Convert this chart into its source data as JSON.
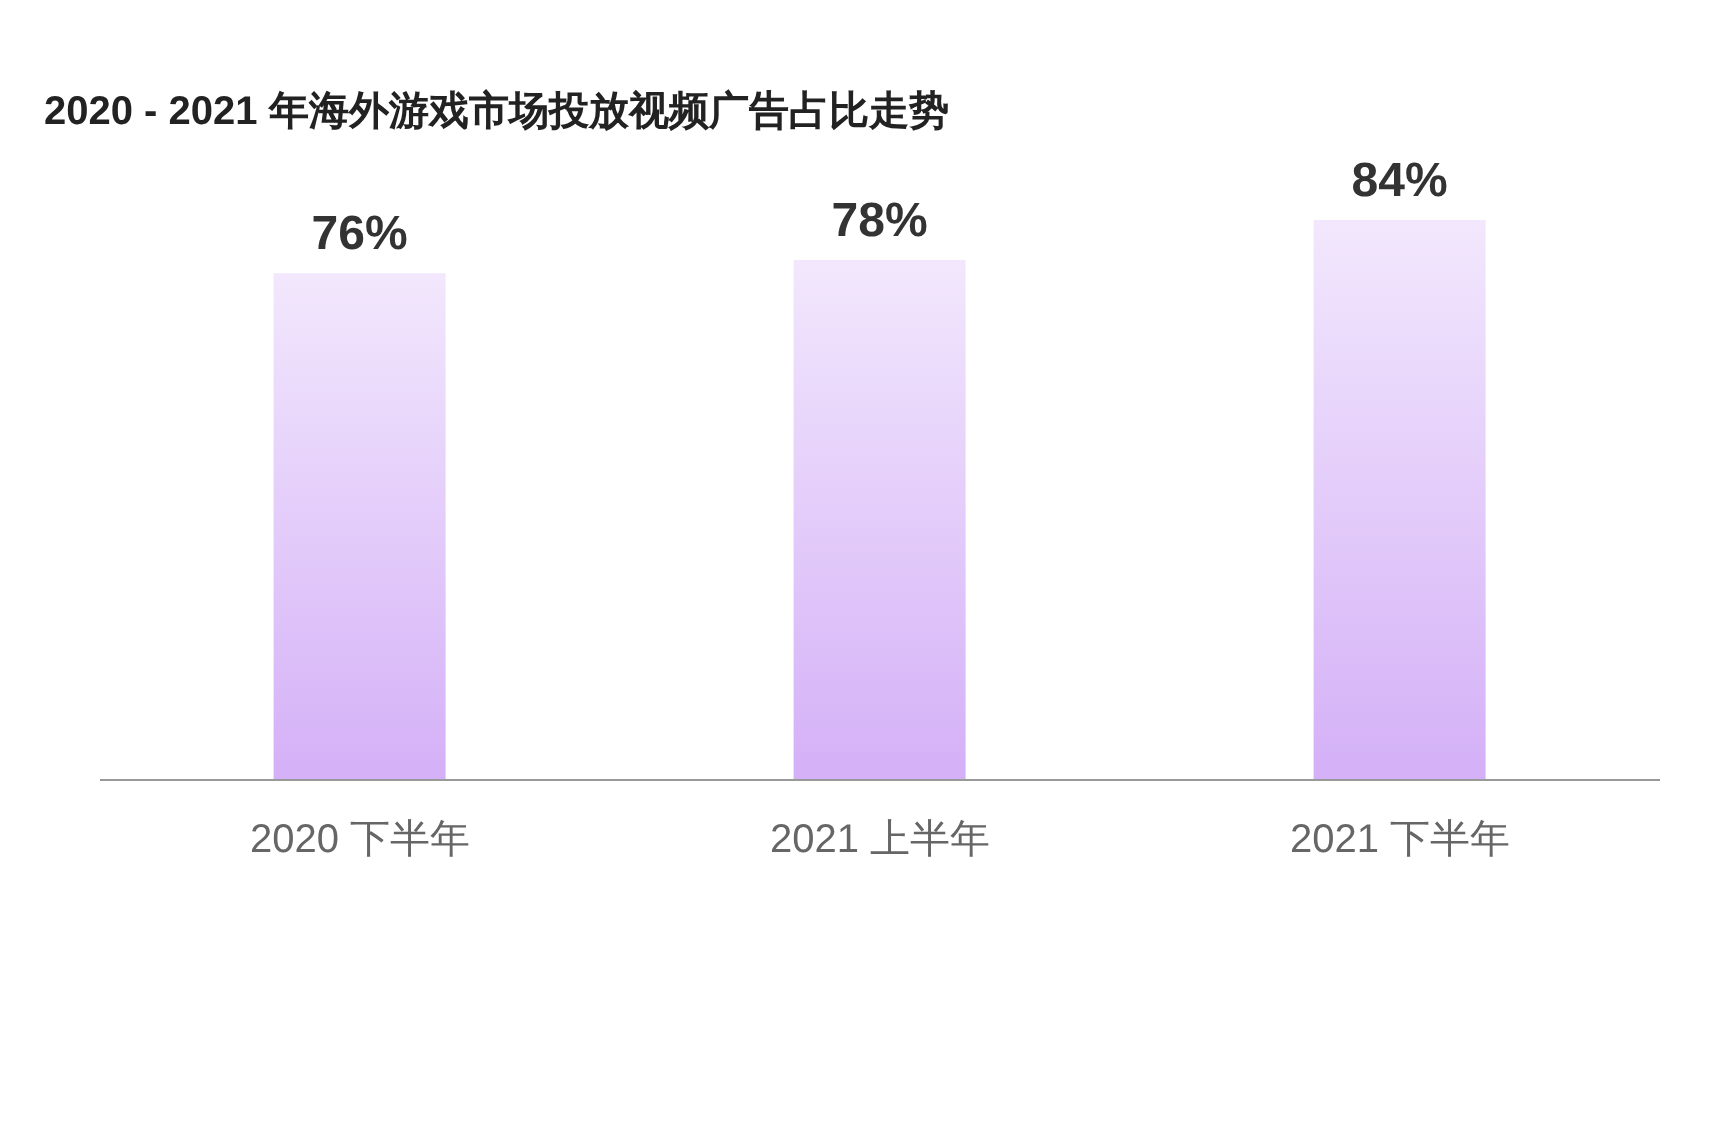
{
  "chart_data": {
    "type": "bar",
    "title": "2020 - 2021 年海外游戏市场投放视频广告占比走势",
    "categories": [
      "2020 下半年",
      "2021 上半年",
      "2021 下半年"
    ],
    "values": [
      76,
      78,
      84
    ],
    "color": "#d4b0f7",
    "value_labels": [
      "76%",
      "78%",
      "84%"
    ],
    "tick_labels": "x"
  }
}
